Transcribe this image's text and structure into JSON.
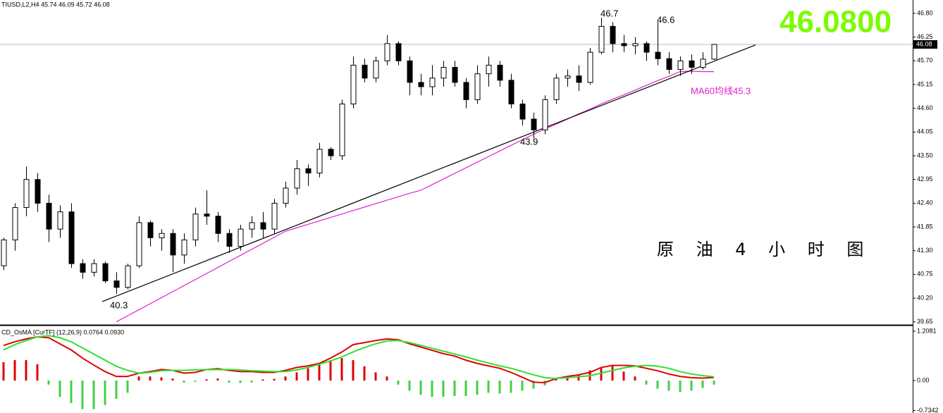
{
  "chart_data": {
    "type": "candlestick",
    "header": "TIUSD,L2,H4  45.74 46.09 45.72 46.08",
    "price_display": "46.0800",
    "caption": "原 油 4 小 时 图",
    "annotations": [
      "46.7",
      "46.6",
      "43.9",
      "40.3",
      "MA60均线45.3"
    ],
    "up_color": "#ffffff",
    "down_color": "#000000",
    "edge_color": "#000000",
    "candles": [
      [
        40.95,
        41.6,
        40.85,
        41.55
      ],
      [
        41.55,
        42.4,
        41.3,
        42.3
      ],
      [
        42.3,
        43.25,
        42.1,
        42.95
      ],
      [
        42.95,
        43.1,
        42.2,
        42.4
      ],
      [
        42.4,
        42.6,
        41.5,
        41.8
      ],
      [
        41.8,
        42.35,
        41.6,
        42.2
      ],
      [
        42.2,
        42.4,
        40.9,
        41.0
      ],
      [
        41.0,
        41.1,
        40.65,
        40.8
      ],
      [
        40.8,
        41.1,
        40.7,
        41.0
      ],
      [
        41.0,
        41.05,
        40.55,
        40.6
      ],
      [
        40.6,
        40.8,
        40.3,
        40.45
      ],
      [
        40.45,
        41.0,
        40.4,
        40.95
      ],
      [
        40.95,
        42.1,
        40.9,
        41.95
      ],
      [
        41.95,
        42.0,
        41.4,
        41.6
      ],
      [
        41.6,
        41.8,
        41.3,
        41.7
      ],
      [
        41.7,
        41.8,
        40.8,
        41.2
      ],
      [
        41.2,
        41.7,
        41.0,
        41.55
      ],
      [
        41.55,
        42.3,
        41.4,
        42.15
      ],
      [
        42.15,
        42.7,
        41.9,
        42.1
      ],
      [
        42.1,
        42.2,
        41.5,
        41.7
      ],
      [
        41.7,
        41.8,
        41.25,
        41.4
      ],
      [
        41.4,
        41.9,
        41.3,
        41.8
      ],
      [
        41.8,
        42.1,
        41.6,
        41.95
      ],
      [
        41.95,
        42.2,
        41.6,
        41.8
      ],
      [
        41.8,
        42.5,
        41.7,
        42.4
      ],
      [
        42.4,
        42.9,
        42.3,
        42.75
      ],
      [
        42.75,
        43.4,
        42.6,
        43.2
      ],
      [
        43.2,
        43.3,
        42.8,
        43.1
      ],
      [
        43.1,
        43.8,
        43.0,
        43.65
      ],
      [
        43.65,
        43.7,
        43.4,
        43.5
      ],
      [
        43.5,
        44.8,
        43.4,
        44.7
      ],
      [
        44.7,
        45.8,
        44.6,
        45.6
      ],
      [
        45.6,
        45.75,
        45.2,
        45.3
      ],
      [
        45.3,
        45.8,
        45.2,
        45.7
      ],
      [
        45.7,
        46.3,
        45.6,
        46.1
      ],
      [
        46.1,
        46.15,
        45.6,
        45.7
      ],
      [
        45.7,
        45.8,
        44.9,
        45.2
      ],
      [
        45.2,
        45.4,
        44.9,
        45.1
      ],
      [
        45.1,
        45.6,
        44.9,
        45.3
      ],
      [
        45.3,
        45.7,
        45.1,
        45.55
      ],
      [
        45.55,
        45.7,
        45.1,
        45.2
      ],
      [
        45.2,
        45.3,
        44.6,
        44.8
      ],
      [
        44.8,
        45.6,
        44.7,
        45.4
      ],
      [
        45.4,
        45.8,
        45.1,
        45.6
      ],
      [
        45.6,
        45.7,
        45.1,
        45.25
      ],
      [
        45.25,
        45.4,
        44.6,
        44.7
      ],
      [
        44.7,
        44.8,
        44.2,
        44.35
      ],
      [
        44.35,
        44.5,
        43.9,
        44.1
      ],
      [
        44.1,
        44.9,
        44.0,
        44.8
      ],
      [
        44.8,
        45.4,
        44.7,
        45.3
      ],
      [
        45.3,
        45.5,
        45.1,
        45.35
      ],
      [
        45.35,
        45.6,
        45.0,
        45.2
      ],
      [
        45.2,
        46.0,
        45.15,
        45.9
      ],
      [
        45.9,
        46.7,
        45.85,
        46.5
      ],
      [
        46.5,
        46.6,
        45.9,
        46.1
      ],
      [
        46.1,
        46.3,
        45.9,
        46.05
      ],
      [
        46.05,
        46.25,
        45.85,
        46.1
      ],
      [
        46.1,
        46.15,
        45.7,
        45.9
      ],
      [
        45.9,
        46.6,
        45.6,
        45.75
      ],
      [
        45.75,
        45.9,
        45.4,
        45.5
      ],
      [
        45.5,
        45.8,
        45.35,
        45.7
      ],
      [
        45.7,
        45.85,
        45.4,
        45.55
      ],
      [
        45.55,
        45.9,
        45.5,
        45.74
      ],
      [
        45.74,
        46.09,
        45.72,
        46.08
      ]
    ],
    "ma": {
      "color": "#e020d0",
      "values": [
        null,
        null,
        null,
        null,
        null,
        null,
        null,
        null,
        null,
        null,
        39.65,
        39.79,
        39.93,
        40.07,
        40.21,
        40.35,
        40.49,
        40.63,
        40.77,
        40.91,
        41.05,
        41.19,
        41.33,
        41.47,
        41.61,
        41.75,
        41.83,
        41.91,
        41.99,
        42.07,
        42.15,
        42.23,
        42.31,
        42.39,
        42.47,
        42.55,
        42.63,
        42.7,
        42.83,
        42.96,
        43.09,
        43.22,
        43.35,
        43.48,
        43.61,
        43.74,
        43.87,
        44.0,
        44.12,
        44.23,
        44.35,
        44.47,
        44.58,
        44.7,
        44.81,
        44.91,
        45.02,
        45.13,
        45.24,
        45.34,
        45.45,
        45.46,
        45.45,
        45.45
      ]
    },
    "trendline": {
      "color": "#000000",
      "x": [
        8.75,
        66.7
      ],
      "values": [
        40.12,
        46.07
      ]
    },
    "ylim": [
      39.58,
      47.11
    ],
    "yticks": [
      {
        "value": 46.8,
        "label": "46.80"
      },
      {
        "value": 46.25,
        "label": "46.25"
      },
      {
        "value": 45.7,
        "label": "45.70"
      },
      {
        "value": 45.15,
        "label": "45.15"
      },
      {
        "value": 44.6,
        "label": "44.60"
      },
      {
        "value": 44.05,
        "label": "44.05"
      },
      {
        "value": 43.5,
        "label": "43.50"
      },
      {
        "value": 42.95,
        "label": "42.95"
      },
      {
        "value": 42.4,
        "label": "42.40"
      },
      {
        "value": 41.85,
        "label": "41.85"
      },
      {
        "value": 41.3,
        "label": "41.30"
      },
      {
        "value": 40.75,
        "label": "40.75"
      },
      {
        "value": 40.2,
        "label": "40.20"
      },
      {
        "value": 39.65,
        "label": "39.65"
      }
    ],
    "indicator": {
      "title": "CD_OsMA [CurTF] (12,26,9) 0.0764 0.0930",
      "ylim": [
        -0.795,
        1.294
      ],
      "yticks": [
        1.2081,
        {
          "value": 0,
          "label": "0.00"
        },
        -0.7342
      ],
      "pos_color": "#e00000",
      "neg_color": "#40d040",
      "histogram": [
        0.45,
        0.5,
        0.5,
        0.4,
        -0.1,
        -0.4,
        -0.55,
        -0.7,
        -0.7,
        -0.6,
        -0.45,
        -0.3,
        0.1,
        0.1,
        0.08,
        0.05,
        -0.05,
        -0.03,
        0.03,
        0.05,
        -0.05,
        -0.06,
        -0.05,
        0.03,
        0.04,
        0.1,
        0.2,
        0.3,
        0.4,
        0.5,
        0.55,
        0.5,
        0.35,
        0.2,
        0.1,
        -0.1,
        -0.25,
        -0.35,
        -0.4,
        -0.4,
        -0.38,
        -0.38,
        -0.35,
        -0.3,
        -0.32,
        -0.3,
        -0.25,
        -0.2,
        -0.12,
        0.05,
        0.1,
        0.15,
        0.25,
        0.3,
        0.35,
        0.22,
        0.1,
        -0.1,
        -0.2,
        -0.25,
        -0.28,
        -0.25,
        -0.18,
        -0.1
      ],
      "series": [
        {
          "color": "#e00000",
          "values": [
            0.86,
            0.95,
            1.02,
            1.07,
            1.05,
            0.9,
            0.75,
            0.55,
            0.38,
            0.22,
            0.1,
            0.1,
            0.18,
            0.22,
            0.27,
            0.25,
            0.18,
            0.2,
            0.27,
            0.29,
            0.25,
            0.22,
            0.22,
            0.2,
            0.2,
            0.25,
            0.32,
            0.36,
            0.42,
            0.55,
            0.7,
            0.88,
            0.93,
            0.98,
            1.02,
            1.0,
            0.9,
            0.82,
            0.74,
            0.66,
            0.6,
            0.5,
            0.42,
            0.36,
            0.3,
            0.2,
            0.08,
            -0.04,
            -0.05,
            0.05,
            0.1,
            0.14,
            0.2,
            0.32,
            0.37,
            0.37,
            0.36,
            0.3,
            0.24,
            0.16,
            0.1,
            0.07,
            0.06,
            0.0764
          ]
        },
        {
          "color": "#30e030",
          "values": [
            0.75,
            0.88,
            0.98,
            1.07,
            1.1,
            1.05,
            0.95,
            0.8,
            0.65,
            0.5,
            0.35,
            0.25,
            0.18,
            0.2,
            0.24,
            0.25,
            0.25,
            0.26,
            0.27,
            0.27,
            0.27,
            0.26,
            0.24,
            0.23,
            0.22,
            0.22,
            0.26,
            0.32,
            0.4,
            0.48,
            0.58,
            0.7,
            0.81,
            0.9,
            0.97,
            0.98,
            0.93,
            0.86,
            0.79,
            0.72,
            0.65,
            0.58,
            0.5,
            0.43,
            0.36,
            0.3,
            0.22,
            0.14,
            0.07,
            0.05,
            0.07,
            0.09,
            0.12,
            0.18,
            0.25,
            0.31,
            0.35,
            0.37,
            0.35,
            0.3,
            0.22,
            0.16,
            0.12,
            0.093
          ]
        }
      ]
    }
  }
}
